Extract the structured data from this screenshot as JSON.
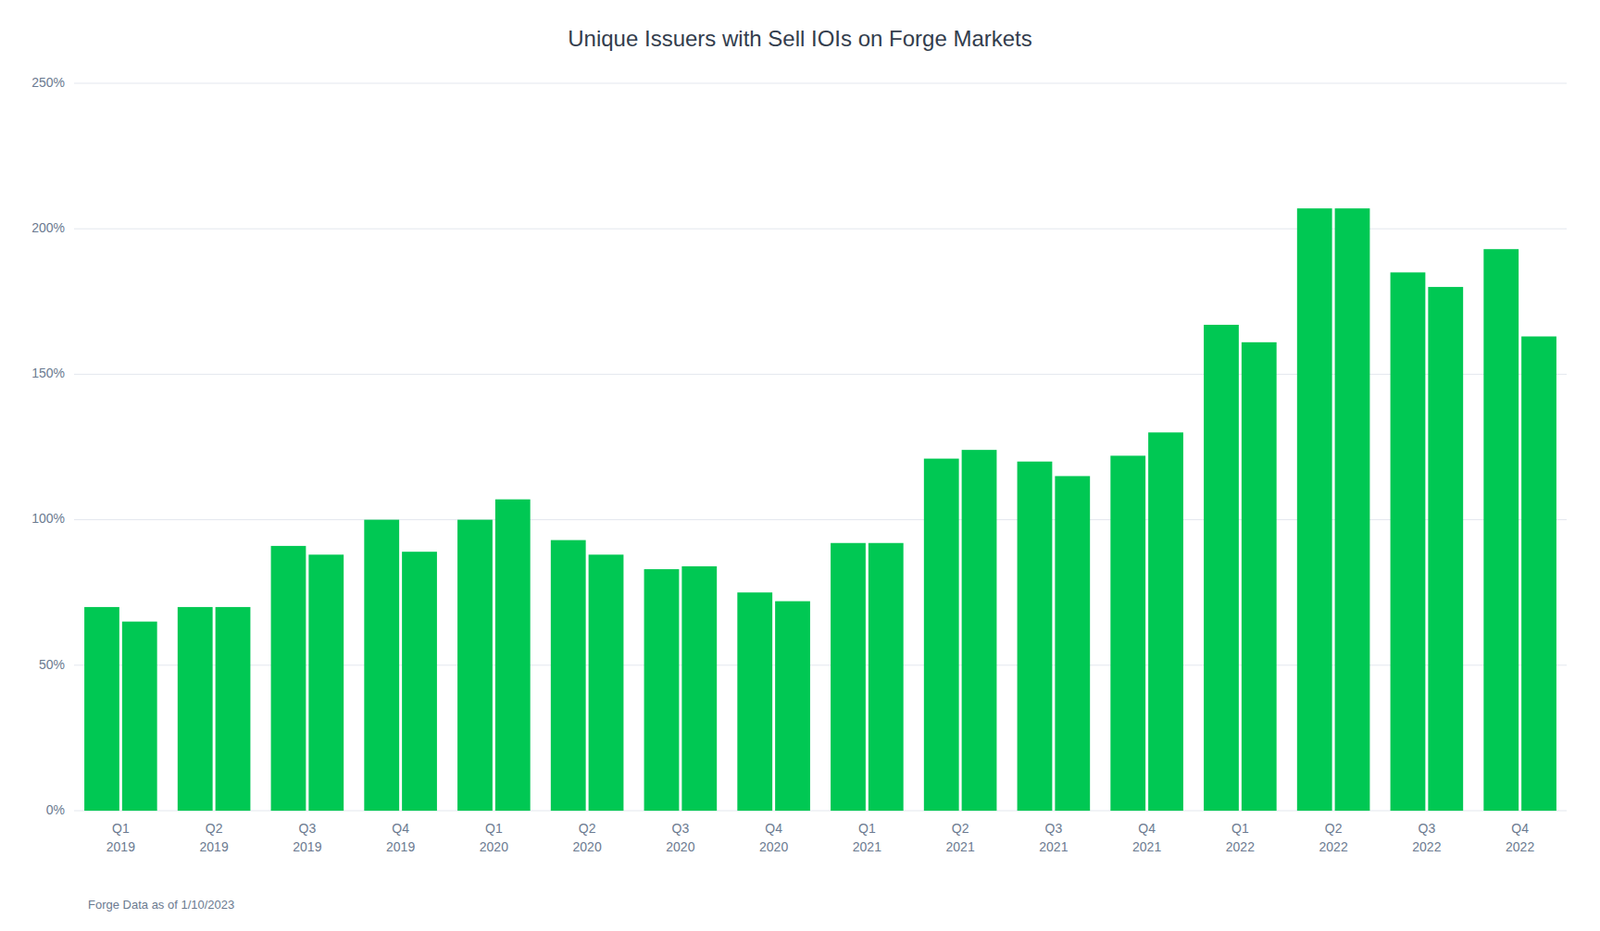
{
  "chart_data": {
    "type": "bar",
    "title": "Unique Issuers with Sell IOIs on Forge Markets",
    "footnote": "Forge Data as of 1/10/2023",
    "categories": [
      "Q1\n2019",
      "Q2\n2019",
      "Q3\n2019",
      "Q4\n2019",
      "Q1\n2020",
      "Q2\n2020",
      "Q3\n2020",
      "Q4\n2020",
      "Q1\n2021",
      "Q2\n2021",
      "Q3\n2021",
      "Q4\n2021",
      "Q1\n2022",
      "Q2\n2022",
      "Q3\n2022",
      "Q4\n2022"
    ],
    "series": [
      {
        "color": "#00C853",
        "values": [
          70,
          70,
          91,
          100,
          100,
          93,
          83,
          75,
          92,
          121,
          120,
          122,
          167,
          207,
          185,
          193
        ]
      },
      {
        "color": "#00C853",
        "values": [
          65,
          70,
          88,
          89,
          107,
          88,
          84,
          72,
          92,
          124,
          115,
          130,
          161,
          207,
          180,
          163
        ]
      }
    ],
    "ylim": [
      0,
      250
    ],
    "yticks": [
      {
        "value": 0,
        "label": "0%"
      },
      {
        "value": 50,
        "label": "50%"
      },
      {
        "value": 100,
        "label": "100%"
      },
      {
        "value": 150,
        "label": "150%"
      },
      {
        "value": 200,
        "label": "200%"
      },
      {
        "value": 250,
        "label": "250%"
      }
    ],
    "grid": true
  }
}
